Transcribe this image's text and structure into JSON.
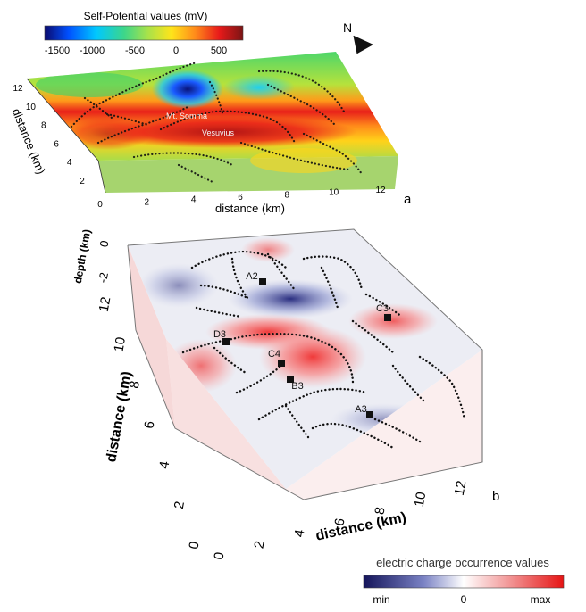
{
  "panel_a": {
    "colorbar_title": "Self-Potential values (mV)",
    "colorbar_ticks": [
      "-1500",
      "-1000",
      "-500",
      "0",
      "500"
    ],
    "colorbar_colors": [
      "#0a0a6e",
      "#0050ff",
      "#00c8ff",
      "#3cd68a",
      "#a8e24a",
      "#ffe41a",
      "#ff8a1a",
      "#e81a1a",
      "#7a1515"
    ],
    "x_ticks": [
      "0",
      "2",
      "4",
      "6",
      "8",
      "10",
      "12"
    ],
    "y_ticks": [
      "2",
      "4",
      "6",
      "8",
      "10",
      "12"
    ],
    "x_label": "distance (km)",
    "y_label": "distance (km)",
    "label_somma": "Mt. Somma",
    "label_vesuvius": "Vesuvius",
    "panel_letter": "a",
    "north": "N"
  },
  "panel_b": {
    "depth_label": "depth (km)",
    "depth_ticks": [
      "0",
      "-2"
    ],
    "y_ticks": [
      "0",
      "2",
      "4",
      "6",
      "8",
      "10",
      "12"
    ],
    "y_label": "distance (km)",
    "x_ticks": [
      "0",
      "2",
      "4",
      "6",
      "8",
      "10",
      "12"
    ],
    "x_label": "distance (km)",
    "points": [
      "A2",
      "C3",
      "D3",
      "C4",
      "B3",
      "A3"
    ],
    "panel_letter": "b",
    "colorbar_title": "electric charge occurrence values",
    "colorbar_min": "min",
    "colorbar_zero": "0",
    "colorbar_max": "max",
    "colorbar_colors": [
      "#14145a",
      "#5a64b4",
      "#ffffff",
      "#f08c8c",
      "#e61414"
    ]
  }
}
